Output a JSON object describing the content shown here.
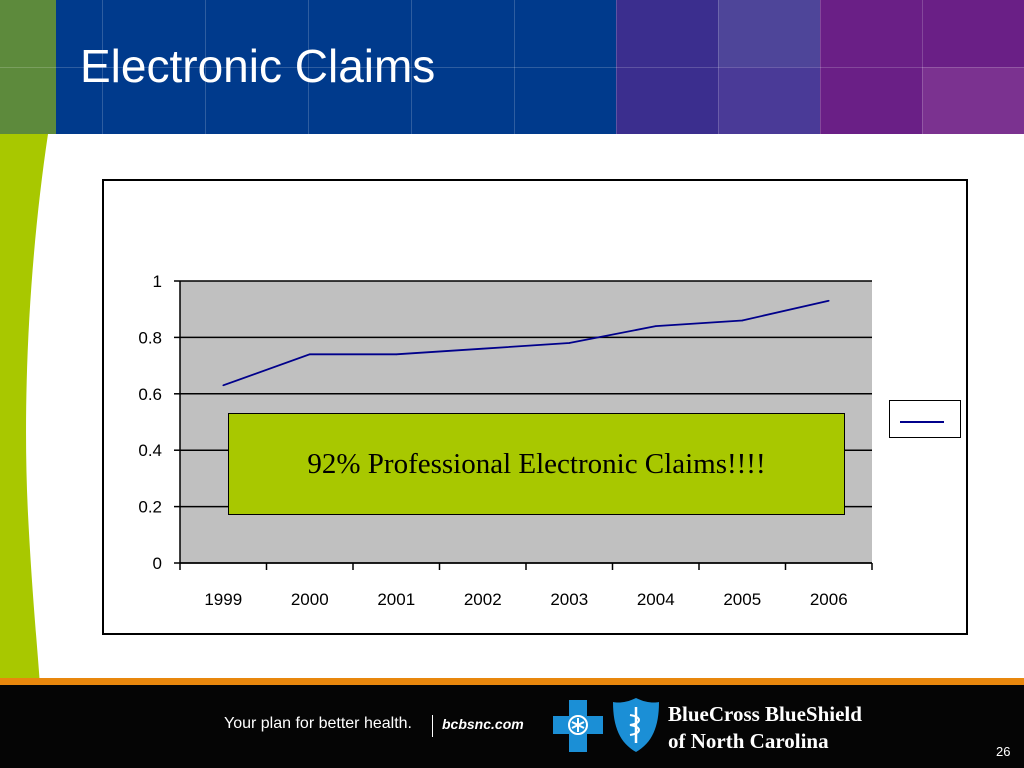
{
  "slide": {
    "title": "Electronic Claims",
    "page_number": "26"
  },
  "callout": {
    "text": "92% Professional Electronic Claims!!!!"
  },
  "footer": {
    "tagline": "Your plan for better health.",
    "website": "bcbsnc.com",
    "brand_line1": "BlueCross BlueShield",
    "brand_line2": "of North Carolina"
  },
  "colors": {
    "header_blue": "#003a8c",
    "header_purple": "#5a1f86",
    "accent_green": "#a8c800",
    "footer_orange": "#e8870d",
    "series_line": "#00008b",
    "plot_bg": "#c0c0c0"
  },
  "chart_data": {
    "type": "line",
    "categories": [
      "1999",
      "2000",
      "2001",
      "2002",
      "2003",
      "2004",
      "2005",
      "2006"
    ],
    "series": [
      {
        "values": [
          0.63,
          0.74,
          0.74,
          0.76,
          0.78,
          0.84,
          0.86,
          0.93
        ]
      }
    ],
    "ylim": [
      0,
      1
    ],
    "yticks": [
      "0",
      "0.2",
      "0.4",
      "0.6",
      "0.8",
      "1"
    ],
    "ytick_values": [
      0,
      0.2,
      0.4,
      0.6,
      0.8,
      1
    ],
    "grid": true,
    "legend": "right",
    "xlabel": "",
    "ylabel": "",
    "title": ""
  }
}
